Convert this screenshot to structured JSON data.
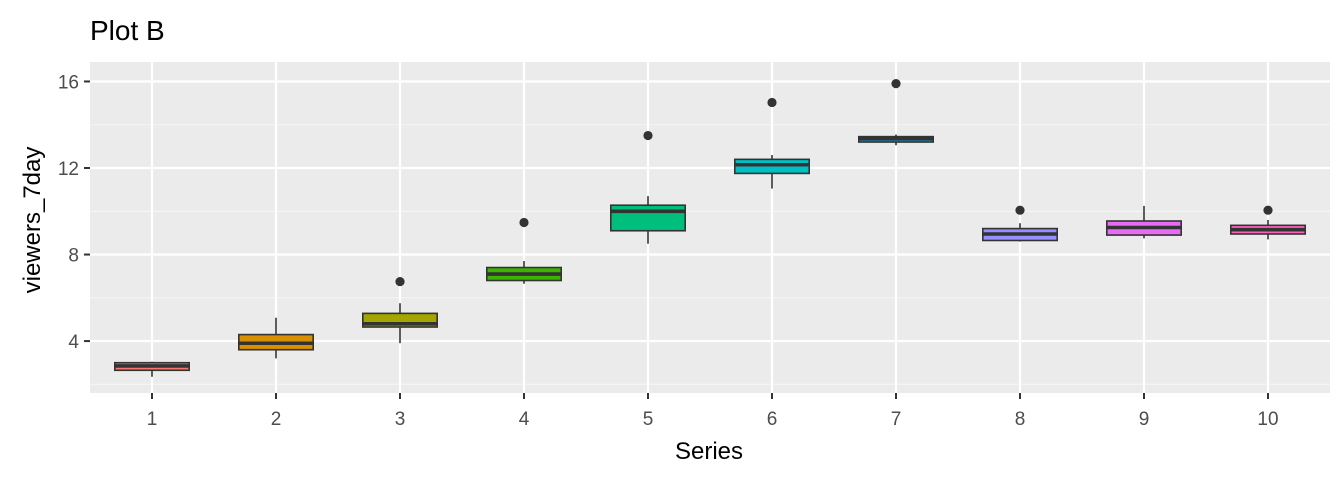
{
  "chart_data": {
    "type": "boxplot",
    "title": "Plot B",
    "xlabel": "Series",
    "ylabel": "viewers_7day",
    "ylim": [
      1.6,
      16.9
    ],
    "yticks": [
      4,
      8,
      12,
      16
    ],
    "grid": true,
    "legend": "none",
    "categories": [
      "1",
      "2",
      "3",
      "4",
      "5",
      "6",
      "7",
      "8",
      "9",
      "10"
    ],
    "boxes": [
      {
        "series": "1",
        "min": 2.35,
        "q1": 2.65,
        "median": 2.85,
        "q3": 3.0,
        "max": 3.05,
        "outliers": [],
        "fill": "#F8766D"
      },
      {
        "series": "2",
        "min": 3.2,
        "q1": 3.6,
        "median": 3.9,
        "q3": 4.3,
        "max": 5.08,
        "outliers": [],
        "fill": "#D89000"
      },
      {
        "series": "3",
        "min": 3.9,
        "q1": 4.65,
        "median": 4.8,
        "q3": 5.28,
        "max": 5.75,
        "outliers": [
          6.75
        ],
        "fill": "#A3A500"
      },
      {
        "series": "4",
        "min": 6.65,
        "q1": 6.8,
        "median": 7.1,
        "q3": 7.4,
        "max": 7.7,
        "outliers": [
          9.48
        ],
        "fill": "#39B600"
      },
      {
        "series": "5",
        "min": 8.5,
        "q1": 9.1,
        "median": 10.0,
        "q3": 10.28,
        "max": 10.7,
        "outliers": [
          13.5
        ],
        "fill": "#00BF7D"
      },
      {
        "series": "6",
        "min": 11.05,
        "q1": 11.75,
        "median": 12.15,
        "q3": 12.4,
        "max": 12.6,
        "outliers": [
          15.03
        ],
        "fill": "#00BFC4"
      },
      {
        "series": "7",
        "min": 13.05,
        "q1": 13.2,
        "median": 13.35,
        "q3": 13.45,
        "max": 13.55,
        "outliers": [
          15.9
        ],
        "fill": "#00B0F6"
      },
      {
        "series": "8",
        "min": 8.6,
        "q1": 8.65,
        "median": 8.95,
        "q3": 9.2,
        "max": 9.45,
        "outliers": [
          10.05
        ],
        "fill": "#9590FF"
      },
      {
        "series": "9",
        "min": 8.75,
        "q1": 8.9,
        "median": 9.25,
        "q3": 9.55,
        "max": 10.25,
        "outliers": [],
        "fill": "#E76BF3"
      },
      {
        "series": "10",
        "min": 8.7,
        "q1": 8.95,
        "median": 9.15,
        "q3": 9.35,
        "max": 9.6,
        "outliers": [
          10.05
        ],
        "fill": "#FF62BC"
      }
    ],
    "colors": {
      "panel_background": "#EBEBEB",
      "grid_major": "#FFFFFF",
      "grid_minor": "#F5F5F5",
      "box_outline": "#333333",
      "tick_text": "#4D4D4D",
      "tick_mark": "#333333",
      "outlier": "#333333"
    }
  }
}
